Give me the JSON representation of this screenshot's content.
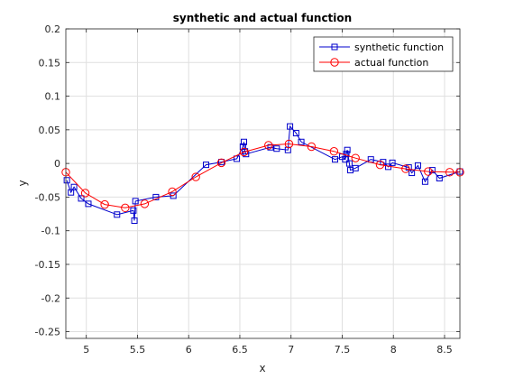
{
  "chart_data": {
    "type": "line",
    "title": "synthetic and actual function",
    "xlabel": "x",
    "ylabel": "y",
    "xlim": [
      4.8,
      8.65
    ],
    "ylim": [
      -0.26,
      0.2
    ],
    "x_ticks": [
      5,
      5.5,
      6,
      6.5,
      7,
      7.5,
      8,
      8.5
    ],
    "y_ticks": [
      -0.25,
      -0.2,
      -0.15,
      -0.1,
      -0.05,
      0,
      0.05,
      0.1,
      0.15,
      0.2
    ],
    "grid": true,
    "legend_position": "top-right",
    "series": [
      {
        "name": "synthetic function",
        "color": "#0000cc",
        "marker": "square",
        "x": [
          4.81,
          4.85,
          4.88,
          4.95,
          5.02,
          5.3,
          5.46,
          5.47,
          5.48,
          5.68,
          5.85,
          6.17,
          6.32,
          6.47,
          6.53,
          6.54,
          6.55,
          6.56,
          6.8,
          6.86,
          6.97,
          6.99,
          7.05,
          7.1,
          7.43,
          7.5,
          7.53,
          7.54,
          7.55,
          7.57,
          7.58,
          7.63,
          7.78,
          7.9,
          7.95,
          7.99,
          8.15,
          8.18,
          8.24,
          8.31,
          8.38,
          8.45,
          8.65
        ],
        "y": [
          -0.025,
          -0.043,
          -0.035,
          -0.052,
          -0.06,
          -0.076,
          -0.07,
          -0.085,
          -0.056,
          -0.05,
          -0.048,
          -0.002,
          0.002,
          0.007,
          0.025,
          0.032,
          0.018,
          0.014,
          0.024,
          0.022,
          0.02,
          0.055,
          0.045,
          0.032,
          0.006,
          0.01,
          0.006,
          0.014,
          0.02,
          0.0,
          -0.01,
          -0.007,
          0.006,
          0.002,
          -0.005,
          0.001,
          -0.006,
          -0.014,
          -0.003,
          -0.027,
          -0.01,
          -0.022,
          -0.012
        ]
      },
      {
        "name": "actual function",
        "color": "#ff0000",
        "marker": "circle",
        "x": [
          4.8,
          4.99,
          5.18,
          5.38,
          5.57,
          5.84,
          6.07,
          6.32,
          6.54,
          6.78,
          6.98,
          7.2,
          7.42,
          7.63,
          7.87,
          8.12,
          8.34,
          8.55,
          8.65
        ],
        "y": [
          -0.013,
          -0.044,
          -0.061,
          -0.066,
          -0.06,
          -0.042,
          -0.02,
          0.001,
          0.017,
          0.027,
          0.029,
          0.025,
          0.018,
          0.008,
          -0.002,
          -0.008,
          -0.012,
          -0.013,
          -0.013
        ]
      }
    ]
  }
}
